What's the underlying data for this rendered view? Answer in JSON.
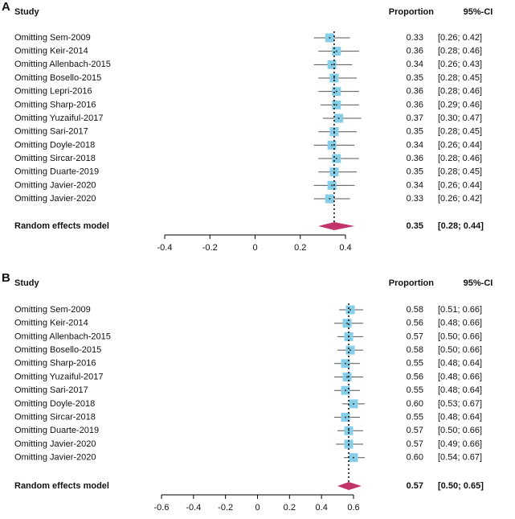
{
  "chart_data": [
    {
      "type": "forest",
      "panel": "A",
      "study_header": "Study",
      "value_header": "Proportion",
      "ci_header": "95%-CI",
      "categories": [
        "Omitting Sem-2009",
        "Omitting Keir-2014",
        "Omitting Allenbach-2015",
        "Omitting Bosello-2015",
        "Omitting Lepri-2016",
        "Omitting Sharp-2016",
        "Omitting Yuzaiful-2017",
        "Omitting Sari-2017",
        "Omitting Doyle-2018",
        "Omitting Sircar-2018",
        "Omitting Duarte-2019",
        "Omitting Javier-2020",
        "Omitting Javier-2020"
      ],
      "values": [
        0.33,
        0.36,
        0.34,
        0.35,
        0.36,
        0.36,
        0.37,
        0.35,
        0.34,
        0.36,
        0.35,
        0.34,
        0.33
      ],
      "value_labels": [
        "0.33",
        "0.36",
        "0.34",
        "0.35",
        "0.36",
        "0.36",
        "0.37",
        "0.35",
        "0.34",
        "0.36",
        "0.35",
        "0.34",
        "0.33"
      ],
      "ci_lower": [
        0.26,
        0.28,
        0.26,
        0.28,
        0.28,
        0.29,
        0.3,
        0.28,
        0.26,
        0.28,
        0.28,
        0.26,
        0.26
      ],
      "ci_upper": [
        0.42,
        0.46,
        0.43,
        0.45,
        0.46,
        0.46,
        0.47,
        0.45,
        0.44,
        0.46,
        0.45,
        0.44,
        0.42
      ],
      "ci_labels": [
        "[0.26; 0.42]",
        "[0.28; 0.46]",
        "[0.26; 0.43]",
        "[0.28; 0.45]",
        "[0.28; 0.46]",
        "[0.29; 0.46]",
        "[0.30; 0.47]",
        "[0.28; 0.45]",
        "[0.26; 0.44]",
        "[0.28; 0.46]",
        "[0.28; 0.45]",
        "[0.26; 0.44]",
        "[0.26; 0.42]"
      ],
      "summary": {
        "label": "Random effects model",
        "value": 0.35,
        "value_label": "0.35",
        "ci_lower": 0.28,
        "ci_upper": 0.44,
        "ci_label": "[0.28; 0.44]"
      },
      "xlim": [
        -0.4,
        0.4
      ],
      "xticks": [
        -0.4,
        -0.2,
        0,
        0.2,
        0.4
      ],
      "color": "#87cfe8",
      "summary_color": "#c2336a"
    },
    {
      "type": "forest",
      "panel": "B",
      "study_header": "Study",
      "value_header": "Proportion",
      "ci_header": "95%-CI",
      "categories": [
        "Omitting Sem-2009",
        "Omitting Keir-2014",
        "Omitting Allenbach-2015",
        "Omitting Bosello-2015",
        "Omitting Sharp-2016",
        "Omitting Yuzaiful-2017",
        "Omitting Sari-2017",
        "Omitting Doyle-2018",
        "Omitting Sircar-2018",
        "Omitting Duarte-2019",
        "Omitting Javier-2020",
        "Omitting Javier-2020"
      ],
      "values": [
        0.58,
        0.56,
        0.57,
        0.58,
        0.55,
        0.56,
        0.55,
        0.6,
        0.55,
        0.57,
        0.57,
        0.6
      ],
      "value_labels": [
        "0.58",
        "0.56",
        "0.57",
        "0.58",
        "0.55",
        "0.56",
        "0.55",
        "0.60",
        "0.55",
        "0.57",
        "0.57",
        "0.60"
      ],
      "ci_lower": [
        0.51,
        0.48,
        0.5,
        0.5,
        0.48,
        0.48,
        0.48,
        0.53,
        0.48,
        0.5,
        0.49,
        0.54
      ],
      "ci_upper": [
        0.66,
        0.66,
        0.66,
        0.66,
        0.64,
        0.66,
        0.64,
        0.67,
        0.64,
        0.66,
        0.66,
        0.67
      ],
      "ci_labels": [
        "[0.51; 0.66]",
        "[0.48; 0.66]",
        "[0.50; 0.66]",
        "[0.50; 0.66]",
        "[0.48; 0.64]",
        "[0.48; 0.66]",
        "[0.48; 0.64]",
        "[0.53; 0.67]",
        "[0.48; 0.64]",
        "[0.50; 0.66]",
        "[0.49; 0.66]",
        "[0.54; 0.67]"
      ],
      "summary": {
        "label": "Random effects model",
        "value": 0.57,
        "value_label": "0.57",
        "ci_lower": 0.5,
        "ci_upper": 0.65,
        "ci_label": "[0.50; 0.65]"
      },
      "xlim": [
        -0.6,
        0.6
      ],
      "xticks": [
        -0.6,
        -0.4,
        -0.2,
        0,
        0.2,
        0.4,
        0.6
      ],
      "color": "#87cfe8",
      "summary_color": "#c2336a"
    }
  ]
}
